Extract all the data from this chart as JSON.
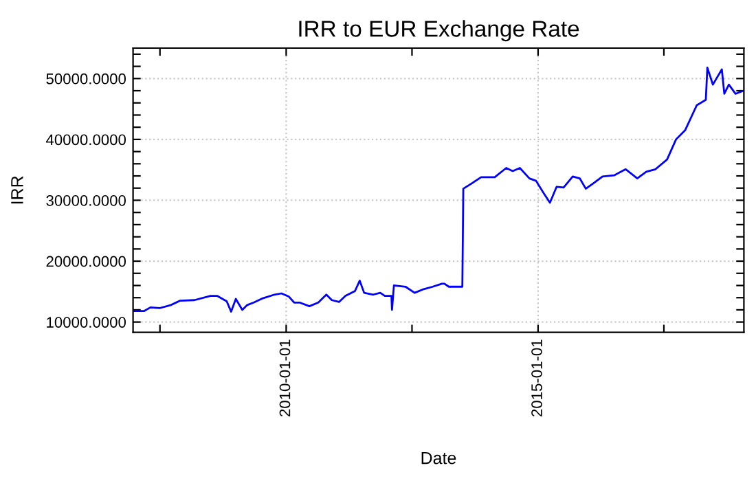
{
  "chart_data": {
    "type": "line",
    "title": "IRR to EUR Exchange Rate",
    "xlabel": "Date",
    "ylabel": "IRR",
    "x": [
      "2006-12-28",
      "2007-03-07",
      "2007-04-23",
      "2007-07-01",
      "2007-09-20",
      "2007-11-22",
      "2008-03-07",
      "2008-07-01",
      "2008-08-18",
      "2008-10-27",
      "2008-11-28",
      "2009-01-01",
      "2009-02-17",
      "2009-03-25",
      "2009-05-11",
      "2009-07-16",
      "2009-10-08",
      "2009-11-28",
      "2010-01-19",
      "2010-02-28",
      "2010-04-08",
      "2010-06-18",
      "2010-08-22",
      "2010-10-19",
      "2010-11-28",
      "2011-01-19",
      "2011-03-07",
      "2011-05-15",
      "2011-06-18",
      "2011-07-20",
      "2011-09-24",
      "2011-11-14",
      "2011-12-17",
      "2012-02-03",
      "2012-02-07",
      "2012-02-21",
      "2012-05-15",
      "2012-07-20",
      "2012-09-24",
      "2012-11-28",
      "2013-02-03",
      "2013-02-21",
      "2013-03-25",
      "2013-07-01",
      "2013-07-08",
      "2013-09-09",
      "2013-11-14",
      "2014-02-21",
      "2014-05-15",
      "2014-07-01",
      "2014-08-22",
      "2014-10-30",
      "2014-12-17",
      "2015-02-07",
      "2015-03-28",
      "2015-05-15",
      "2015-07-05",
      "2015-09-09",
      "2015-10-30",
      "2015-12-13",
      "2016-02-07",
      "2016-04-12",
      "2016-07-05",
      "2016-09-27",
      "2016-12-20",
      "2017-02-24",
      "2017-05-01",
      "2017-07-24",
      "2017-09-27",
      "2017-12-02",
      "2018-02-24",
      "2018-05-01",
      "2018-05-12",
      "2018-06-21",
      "2018-08-25",
      "2018-09-12",
      "2018-10-15",
      "2018-12-02",
      "2019-01-30"
    ],
    "series": [
      {
        "color": "#0000ff",
        "values": [
          11800,
          11800,
          12400,
          12300,
          12800,
          13500,
          13600,
          14300,
          14300,
          13400,
          11700,
          13800,
          12000,
          12800,
          13200,
          13900,
          14500,
          14700,
          14200,
          13200,
          13200,
          12600,
          13200,
          14500,
          13600,
          13300,
          14300,
          15100,
          16800,
          14800,
          14500,
          14800,
          14300,
          14300,
          12000,
          16000,
          15800,
          14800,
          15400,
          15800,
          16300,
          16300,
          15800,
          15800,
          31900,
          32800,
          33800,
          33800,
          35300,
          34800,
          35300,
          33600,
          33200,
          31300,
          29600,
          32200,
          32100,
          33900,
          33600,
          31900,
          32800,
          33900,
          34100,
          35100,
          33600,
          34700,
          35100,
          36700,
          40000,
          41500,
          45600,
          46500,
          51800,
          49000,
          51500,
          47500,
          49000,
          47500,
          48000
        ]
      }
    ],
    "xlim": [
      "2006-12-18",
      "2019-02-01"
    ],
    "ylim": [
      8300,
      55000
    ],
    "xticks": [
      {
        "value": "2007-07-01",
        "label": null
      },
      {
        "value": "2010-01-01",
        "label": "2010-01-01"
      },
      {
        "value": "2012-07-01",
        "label": null
      },
      {
        "value": "2015-01-01",
        "label": "2015-01-01"
      },
      {
        "value": "2017-07-01",
        "label": null
      }
    ],
    "yticks": [
      {
        "value": 10000,
        "label": "10000.0000"
      },
      {
        "value": 12000,
        "label": null
      },
      {
        "value": 14000,
        "label": null
      },
      {
        "value": 16000,
        "label": null
      },
      {
        "value": 18000,
        "label": null
      },
      {
        "value": 20000,
        "label": "20000.0000"
      },
      {
        "value": 22000,
        "label": null
      },
      {
        "value": 24000,
        "label": null
      },
      {
        "value": 26000,
        "label": null
      },
      {
        "value": 28000,
        "label": null
      },
      {
        "value": 30000,
        "label": "30000.0000"
      },
      {
        "value": 32000,
        "label": null
      },
      {
        "value": 34000,
        "label": null
      },
      {
        "value": 36000,
        "label": null
      },
      {
        "value": 38000,
        "label": null
      },
      {
        "value": 40000,
        "label": "40000.0000"
      },
      {
        "value": 42000,
        "label": null
      },
      {
        "value": 44000,
        "label": null
      },
      {
        "value": 46000,
        "label": null
      },
      {
        "value": 48000,
        "label": null
      },
      {
        "value": 50000,
        "label": "50000.0000"
      },
      {
        "value": 52000,
        "label": null
      },
      {
        "value": 54000,
        "label": null
      }
    ],
    "grid": true,
    "legend": false,
    "marker": "none",
    "line_style": "solid"
  }
}
